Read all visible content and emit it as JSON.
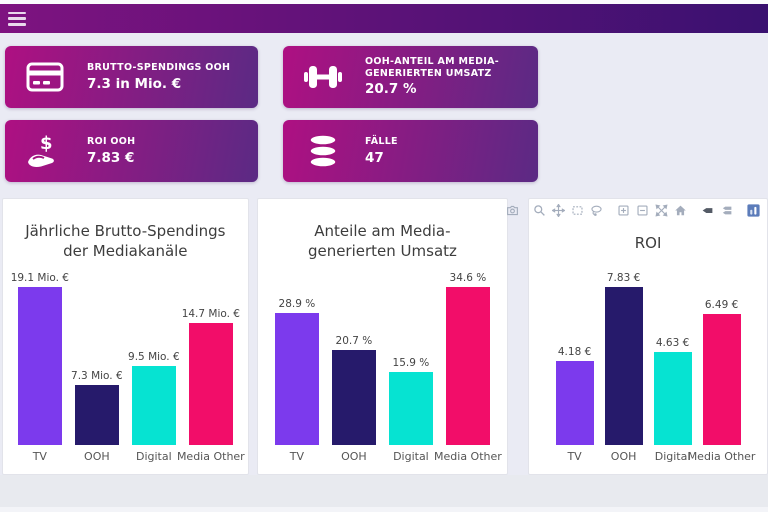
{
  "navbar": {
    "menu_icon": "hamburger-icon"
  },
  "kpi_cards": [
    {
      "icon": "credit-card-icon",
      "label": "BRUTTO-SPENDINGS OOH",
      "value": "7.3 in Mio. €"
    },
    {
      "icon": "dumbbell-icon",
      "label": "OOH-ANTEIL AM MEDIA-GENERIERTEN UMSATZ",
      "value": "20.7 %"
    },
    {
      "icon": "hand-dollar-icon",
      "label": "ROI OOH",
      "value": "7.83 €"
    },
    {
      "icon": "database-icon",
      "label": "FÄLLE",
      "value": "47"
    }
  ],
  "modebar": {
    "buttons": [
      "camera-icon",
      "zoom-icon",
      "pan-icon",
      "box-select-icon",
      "lasso-icon",
      "zoom-in-icon",
      "zoom-out-icon",
      "autoscale-icon",
      "reset-axes-icon",
      "hover-closest-icon",
      "compare-hover-icon",
      "plotly-logo-icon"
    ]
  },
  "colors": {
    "navbar_gradient_start": "#7E1380",
    "navbar_gradient_end": "#3A1170",
    "card_gradient_start": "#AE1082",
    "card_gradient_end": "#5B2A84",
    "page_background": "#EAEBF4",
    "bar_tv": "#7C3AED",
    "bar_ooh": "#261A6B",
    "bar_digital": "#06E3D2",
    "bar_media_other": "#F20D69"
  },
  "chart_data": [
    {
      "type": "bar",
      "title": "Jährliche Brutto-Spendings\nder Mediakanäle",
      "categories": [
        "TV",
        "OOH",
        "Digital",
        "Media Other"
      ],
      "values": [
        19.1,
        7.3,
        9.5,
        14.7
      ],
      "value_labels": [
        "19.1 Mio. €",
        "7.3 Mio. €",
        "9.5 Mio. €",
        "14.7 Mio. €"
      ],
      "colors": [
        "#7C3AED",
        "#261A6B",
        "#06E3D2",
        "#F20D69"
      ],
      "ylim": [
        0,
        19.1
      ],
      "grid": false,
      "legend": "none"
    },
    {
      "type": "bar",
      "title": "Anteile am Media-\ngenerierten Umsatz",
      "categories": [
        "TV",
        "OOH",
        "Digital",
        "Media Other"
      ],
      "values": [
        28.9,
        20.7,
        15.9,
        34.6
      ],
      "value_labels": [
        "28.9 %",
        "20.7 %",
        "15.9 %",
        "34.6 %"
      ],
      "colors": [
        "#7C3AED",
        "#261A6B",
        "#06E3D2",
        "#F20D69"
      ],
      "ylim": [
        0,
        34.6
      ],
      "grid": false,
      "legend": "none"
    },
    {
      "type": "bar",
      "title": "ROI",
      "categories": [
        "TV",
        "OOH",
        "Digital",
        "Media Other"
      ],
      "values": [
        4.18,
        7.83,
        4.63,
        6.49
      ],
      "value_labels": [
        "4.18 €",
        "7.83 €",
        "4.63 €",
        "6.49 €"
      ],
      "colors": [
        "#7C3AED",
        "#261A6B",
        "#06E3D2",
        "#F20D69"
      ],
      "ylim": [
        0,
        7.83
      ],
      "grid": false,
      "legend": "none"
    }
  ]
}
